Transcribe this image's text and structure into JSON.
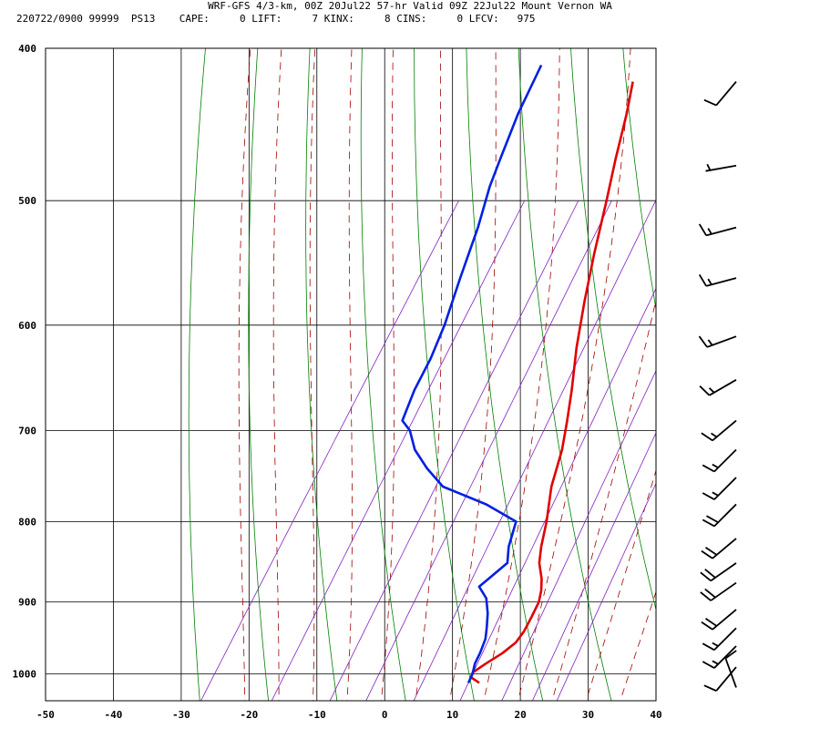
{
  "header": {
    "line1": "WRF-GFS 4/3-km, 00Z 20Jul22 57-hr Valid 09Z 22Jul22 Mount Vernon WA",
    "line2": "220722/0900 99999  PS13    CAPE:     0 LIFT:     7 KINX:     8 CINS:     0 LFCV:   975"
  },
  "chart_data": {
    "type": "line",
    "title": "WRF-GFS 4/3-km, 00Z 20Jul22 57-hr Valid 09Z 22Jul22 Mount Vernon WA",
    "xlabel": "",
    "ylabel": "",
    "xlim": [
      -50,
      40
    ],
    "ylim": [
      1040,
      400
    ],
    "y_scale": "log",
    "x_ticks": [
      -50,
      -40,
      -30,
      -20,
      -10,
      0,
      10,
      20,
      30,
      40
    ],
    "y_ticks": [
      400,
      500,
      600,
      700,
      800,
      900,
      1000
    ],
    "grid": true,
    "colors": {
      "temperature": "#e00000",
      "dewpoint": "#0020e0",
      "dry_adiabat": "#008000",
      "moist_adiabat": "#a00000",
      "mixing_ratio": "#8020c0",
      "barb": "#000000"
    },
    "series": [
      {
        "x_pressure": [
          1013,
          1005,
          998,
          985,
          970,
          955,
          940,
          920,
          900,
          885,
          870,
          850,
          830,
          800,
          760,
          720,
          690,
          660,
          620,
          580,
          540,
          500,
          470,
          440,
          420
        ],
        "values": [
          12.3,
          10.6,
          10.4,
          11.5,
          13.0,
          14.0,
          14.2,
          14.0,
          13.7,
          13.0,
          12.0,
          10.2,
          9.0,
          7.5,
          5.0,
          3.2,
          1.3,
          -0.8,
          -4.0,
          -7.0,
          -10.0,
          -13.0,
          -15.5,
          -18.0,
          -20.0
        ]
      },
      {
        "x_pressure": [
          1013,
          1000,
          985,
          970,
          950,
          935,
          915,
          895,
          880,
          865,
          850,
          830,
          800,
          780,
          760,
          740,
          720,
          700,
          690,
          660,
          630,
          600,
          560,
          520,
          490,
          470,
          440,
          410
        ],
        "values": [
          10.7,
          10.5,
          9.9,
          9.7,
          9.2,
          8.4,
          7.2,
          5.6,
          3.5,
          4.5,
          5.5,
          4.2,
          3.0,
          -3.0,
          -11.0,
          -15.0,
          -18.5,
          -21.0,
          -23.0,
          -24.0,
          -24.5,
          -25.5,
          -27.5,
          -29.5,
          -31.5,
          -32.5,
          -34.0,
          -35.0
        ]
      }
    ],
    "wind_barbs": [
      {
        "p": 1020,
        "dir": 340,
        "spd": 10
      },
      {
        "p": 990,
        "dir": 220,
        "spd": 10
      },
      {
        "p": 960,
        "dir": 225,
        "spd": 15
      },
      {
        "p": 935,
        "dir": 225,
        "spd": 15
      },
      {
        "p": 910,
        "dir": 230,
        "spd": 20
      },
      {
        "p": 875,
        "dir": 235,
        "spd": 20
      },
      {
        "p": 850,
        "dir": 235,
        "spd": 20
      },
      {
        "p": 820,
        "dir": 230,
        "spd": 20
      },
      {
        "p": 780,
        "dir": 225,
        "spd": 20
      },
      {
        "p": 750,
        "dir": 225,
        "spd": 15
      },
      {
        "p": 720,
        "dir": 225,
        "spd": 15
      },
      {
        "p": 690,
        "dir": 230,
        "spd": 15
      },
      {
        "p": 650,
        "dir": 240,
        "spd": 15
      },
      {
        "p": 610,
        "dir": 250,
        "spd": 15
      },
      {
        "p": 560,
        "dir": 255,
        "spd": 15
      },
      {
        "p": 520,
        "dir": 255,
        "spd": 15
      },
      {
        "p": 475,
        "dir": 260,
        "spd": 5
      },
      {
        "p": 420,
        "dir": 220,
        "spd": 10
      }
    ]
  }
}
